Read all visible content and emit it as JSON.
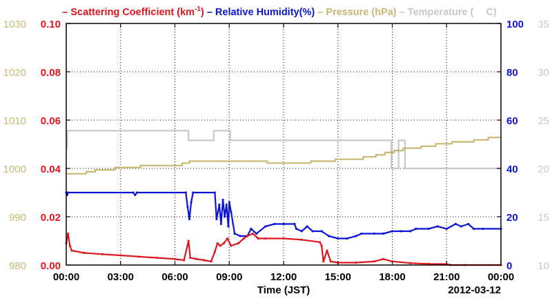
{
  "chart_data": {
    "type": "line",
    "legend_placement": "top",
    "date_label": "2012-03-12",
    "xlabel": "Time (JST)",
    "x_ticks": [
      "00:00",
      "03:00",
      "06:00",
      "09:00",
      "12:00",
      "15:00",
      "18:00",
      "21:00",
      "00:00"
    ],
    "x_range_hours": [
      0,
      24
    ],
    "grid": true,
    "axes": {
      "pressure": {
        "side": "left-outer",
        "color": "#c8b874",
        "range": [
          980,
          1030
        ],
        "ticks": [
          "980",
          "990",
          "1000",
          "1010",
          "1020",
          "1030"
        ]
      },
      "scattering": {
        "side": "left-inner",
        "color": "#e0141c",
        "range": [
          0.0,
          0.1
        ],
        "ticks": [
          "0.00",
          "0.02",
          "0.04",
          "0.06",
          "0.08",
          "0.10"
        ]
      },
      "humidity": {
        "side": "right-inner",
        "color": "#0a14d2",
        "range": [
          0,
          100
        ],
        "ticks": [
          "0",
          "20",
          "40",
          "60",
          "80",
          "100"
        ]
      },
      "temperature": {
        "side": "right-outer",
        "color": "#c8c8c8",
        "range": [
          10,
          35
        ],
        "ticks": [
          "10",
          "15",
          "20",
          "25",
          "30",
          "35"
        ]
      }
    },
    "legend": [
      {
        "prefix": "–",
        "text": "Scattering Coefficient (km",
        "sup": "-1",
        "suffix": ")",
        "color": "#e0141c"
      },
      {
        "prefix": "–",
        "text": "Relative Humidity(%)",
        "sup": "",
        "suffix": "",
        "color": "#0a14d2"
      },
      {
        "prefix": "–",
        "text": "Pressure (hPa)",
        "sup": "",
        "suffix": "",
        "color": "#c8b874"
      },
      {
        "prefix": "–",
        "text": "Temperature (",
        "sup": "",
        "suffix": "C)",
        "color": "#c8c8c8"
      }
    ],
    "series": [
      {
        "name": "Temperature",
        "axis": "temperature",
        "color": "#c8c8c8",
        "step": true,
        "points": [
          [
            0.0,
            22.1
          ],
          [
            0.05,
            23.9
          ],
          [
            6.7,
            23.9
          ],
          [
            6.75,
            22.9
          ],
          [
            8.1,
            22.9
          ],
          [
            8.15,
            23.9
          ],
          [
            9.0,
            23.9
          ],
          [
            9.05,
            22.9
          ],
          [
            17.9,
            22.9
          ],
          [
            17.95,
            20.0
          ],
          [
            18.3,
            20.0
          ],
          [
            18.35,
            22.9
          ],
          [
            18.65,
            22.9
          ],
          [
            18.7,
            20.0
          ],
          [
            24.0,
            20.0
          ]
        ]
      },
      {
        "name": "Pressure",
        "axis": "pressure",
        "color": "#c8b874",
        "step": true,
        "points": [
          [
            0.0,
            998.9
          ],
          [
            0.1,
            998.9
          ],
          [
            1.1,
            999.3
          ],
          [
            1.6,
            999.7
          ],
          [
            2.7,
            1000.2
          ],
          [
            4.1,
            1000.6
          ],
          [
            6.4,
            1001.1
          ],
          [
            6.8,
            1001.5
          ],
          [
            9.0,
            1001.5
          ],
          [
            11.0,
            1001.5
          ],
          [
            11.1,
            1001.1
          ],
          [
            13.4,
            1001.1
          ],
          [
            13.5,
            1001.5
          ],
          [
            14.8,
            1001.5
          ],
          [
            14.85,
            1001.9
          ],
          [
            15.9,
            1001.9
          ],
          [
            16.4,
            1002.4
          ],
          [
            17.1,
            1002.8
          ],
          [
            17.6,
            1003.3
          ],
          [
            18.1,
            1003.7
          ],
          [
            18.6,
            1004.2
          ],
          [
            19.6,
            1004.6
          ],
          [
            20.4,
            1005.1
          ],
          [
            21.3,
            1005.5
          ],
          [
            22.5,
            1005.9
          ],
          [
            23.3,
            1006.4
          ],
          [
            24.0,
            1006.4
          ]
        ]
      },
      {
        "name": "Relative Humidity",
        "axis": "humidity",
        "color": "#0a14d2",
        "step": false,
        "points": [
          [
            0.0,
            30
          ],
          [
            0.05,
            29
          ],
          [
            0.1,
            30
          ],
          [
            3.7,
            30
          ],
          [
            3.8,
            29
          ],
          [
            3.9,
            30
          ],
          [
            6.6,
            30
          ],
          [
            6.7,
            24
          ],
          [
            6.8,
            19
          ],
          [
            6.9,
            26
          ],
          [
            7.0,
            30
          ],
          [
            8.2,
            30
          ],
          [
            8.3,
            19
          ],
          [
            8.45,
            25
          ],
          [
            8.55,
            17
          ],
          [
            8.65,
            27
          ],
          [
            8.75,
            20
          ],
          [
            8.85,
            25
          ],
          [
            8.95,
            16
          ],
          [
            9.0,
            26
          ],
          [
            9.1,
            22
          ],
          [
            9.3,
            13
          ],
          [
            9.6,
            12
          ],
          [
            10.0,
            12
          ],
          [
            10.2,
            15
          ],
          [
            10.5,
            13
          ],
          [
            11.0,
            16
          ],
          [
            11.5,
            17
          ],
          [
            12.0,
            17
          ],
          [
            12.6,
            17
          ],
          [
            12.7,
            15
          ],
          [
            13.0,
            14
          ],
          [
            13.3,
            16
          ],
          [
            13.6,
            14
          ],
          [
            14.1,
            14
          ],
          [
            14.5,
            12
          ],
          [
            15.0,
            11
          ],
          [
            15.5,
            11
          ],
          [
            16.0,
            12
          ],
          [
            16.3,
            13
          ],
          [
            17.0,
            13
          ],
          [
            17.5,
            13
          ],
          [
            18.0,
            14
          ],
          [
            18.5,
            14
          ],
          [
            19.0,
            14
          ],
          [
            19.3,
            15
          ],
          [
            20.0,
            15
          ],
          [
            20.5,
            16
          ],
          [
            21.0,
            15
          ],
          [
            21.5,
            17
          ],
          [
            21.8,
            16
          ],
          [
            22.2,
            17
          ],
          [
            22.5,
            15
          ],
          [
            23.0,
            15
          ],
          [
            24.0,
            15
          ]
        ]
      },
      {
        "name": "Scattering Coefficient",
        "axis": "scattering",
        "color": "#e0141c",
        "step": false,
        "points": [
          [
            0.0,
            0.009
          ],
          [
            0.1,
            0.013
          ],
          [
            0.2,
            0.008
          ],
          [
            0.3,
            0.006
          ],
          [
            1.0,
            0.005
          ],
          [
            2.0,
            0.0045
          ],
          [
            3.0,
            0.004
          ],
          [
            4.0,
            0.0035
          ],
          [
            5.0,
            0.003
          ],
          [
            6.0,
            0.0025
          ],
          [
            6.5,
            0.002
          ],
          [
            6.75,
            0.01
          ],
          [
            6.85,
            0.003
          ],
          [
            7.2,
            0.0025
          ],
          [
            7.6,
            0.002
          ],
          [
            8.0,
            0.0015
          ],
          [
            8.2,
            0.0055
          ],
          [
            8.35,
            0.009
          ],
          [
            8.5,
            0.008
          ],
          [
            8.7,
            0.009
          ],
          [
            8.9,
            0.011
          ],
          [
            9.1,
            0.008
          ],
          [
            9.5,
            0.009
          ],
          [
            9.8,
            0.011
          ],
          [
            10.0,
            0.012
          ],
          [
            10.3,
            0.013
          ],
          [
            10.6,
            0.011
          ],
          [
            11.0,
            0.011
          ],
          [
            12.0,
            0.011
          ],
          [
            13.0,
            0.0105
          ],
          [
            14.0,
            0.0095
          ],
          [
            14.1,
            0.008
          ],
          [
            14.2,
            0.0015
          ],
          [
            14.4,
            0.006
          ],
          [
            14.6,
            0.0015
          ],
          [
            15.0,
            0.001
          ],
          [
            16.0,
            0.001
          ],
          [
            17.0,
            0.0015
          ],
          [
            17.5,
            0.0025
          ],
          [
            18.0,
            0.0015
          ],
          [
            19.0,
            0.0008
          ],
          [
            20.0,
            0.0005
          ],
          [
            21.0,
            0.0004
          ],
          [
            21.2,
            0.0
          ],
          [
            22.0,
            0.0
          ],
          [
            24.0,
            0.0
          ]
        ]
      }
    ]
  }
}
